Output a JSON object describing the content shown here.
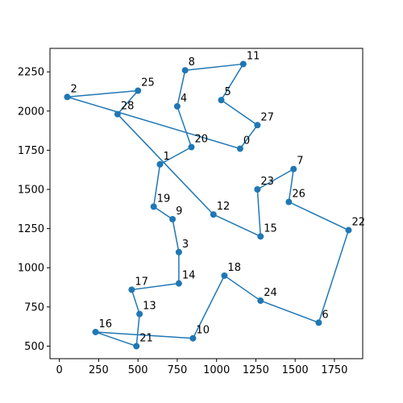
{
  "chart_data": {
    "type": "line",
    "title": "",
    "xlabel": "",
    "ylabel": "",
    "xlim": [
      -60,
      1930
    ],
    "ylim": [
      420,
      2400
    ],
    "xticks": [
      0,
      250,
      500,
      750,
      1000,
      1250,
      1500,
      1750
    ],
    "yticks": [
      500,
      750,
      1000,
      1250,
      1500,
      1750,
      2000,
      2250
    ],
    "grid": false,
    "colors": {
      "series": "#1f77b4"
    },
    "points": [
      {
        "label": "0",
        "x": 1150,
        "y": 1760
      },
      {
        "label": "1",
        "x": 640,
        "y": 1660
      },
      {
        "label": "2",
        "x": 50,
        "y": 2090
      },
      {
        "label": "3",
        "x": 760,
        "y": 1100
      },
      {
        "label": "4",
        "x": 750,
        "y": 2030
      },
      {
        "label": "5",
        "x": 1030,
        "y": 2070
      },
      {
        "label": "6",
        "x": 1650,
        "y": 650
      },
      {
        "label": "7",
        "x": 1490,
        "y": 1630
      },
      {
        "label": "8",
        "x": 800,
        "y": 2260
      },
      {
        "label": "9",
        "x": 720,
        "y": 1310
      },
      {
        "label": "10",
        "x": 850,
        "y": 550
      },
      {
        "label": "11",
        "x": 1170,
        "y": 2300
      },
      {
        "label": "12",
        "x": 980,
        "y": 1340
      },
      {
        "label": "13",
        "x": 510,
        "y": 705
      },
      {
        "label": "14",
        "x": 760,
        "y": 900
      },
      {
        "label": "15",
        "x": 1280,
        "y": 1200
      },
      {
        "label": "16",
        "x": 230,
        "y": 590
      },
      {
        "label": "17",
        "x": 460,
        "y": 860
      },
      {
        "label": "19",
        "x": 600,
        "y": 1390
      },
      {
        "label": "20",
        "x": 840,
        "y": 1770
      },
      {
        "label": "21",
        "x": 490,
        "y": 500
      },
      {
        "label": "22",
        "x": 1840,
        "y": 1240
      },
      {
        "label": "23",
        "x": 1260,
        "y": 1500
      },
      {
        "label": "24",
        "x": 1280,
        "y": 790
      },
      {
        "label": "25",
        "x": 500,
        "y": 2130
      },
      {
        "label": "26",
        "x": 1460,
        "y": 1420
      },
      {
        "label": "27",
        "x": 1260,
        "y": 1910
      },
      {
        "label": "28",
        "x": 370,
        "y": 1980
      },
      {
        "label": "18",
        "x": 1050,
        "y": 950
      }
    ],
    "path": [
      {
        "x": 1150,
        "y": 1760
      },
      {
        "x": 1260,
        "y": 1910
      },
      {
        "x": 1030,
        "y": 2070
      },
      {
        "x": 1170,
        "y": 2300
      },
      {
        "x": 800,
        "y": 2260
      },
      {
        "x": 750,
        "y": 2030
      },
      {
        "x": 840,
        "y": 1770
      },
      {
        "x": 640,
        "y": 1660
      },
      {
        "x": 600,
        "y": 1390
      },
      {
        "x": 720,
        "y": 1310
      },
      {
        "x": 760,
        "y": 1100
      },
      {
        "x": 760,
        "y": 900
      },
      {
        "x": 460,
        "y": 860
      },
      {
        "x": 510,
        "y": 705
      },
      {
        "x": 490,
        "y": 500
      },
      {
        "x": 230,
        "y": 590
      },
      {
        "x": 850,
        "y": 550
      },
      {
        "x": 1050,
        "y": 950
      },
      {
        "x": 1280,
        "y": 790
      },
      {
        "x": 1650,
        "y": 650
      },
      {
        "x": 1840,
        "y": 1240
      },
      {
        "x": 1460,
        "y": 1420
      },
      {
        "x": 1490,
        "y": 1630
      },
      {
        "x": 1260,
        "y": 1500
      },
      {
        "x": 1280,
        "y": 1200
      },
      {
        "x": 980,
        "y": 1340
      },
      {
        "x": 370,
        "y": 1980
      },
      {
        "x": 500,
        "y": 2130
      },
      {
        "x": 50,
        "y": 2090
      },
      {
        "x": 1150,
        "y": 1760
      }
    ]
  }
}
